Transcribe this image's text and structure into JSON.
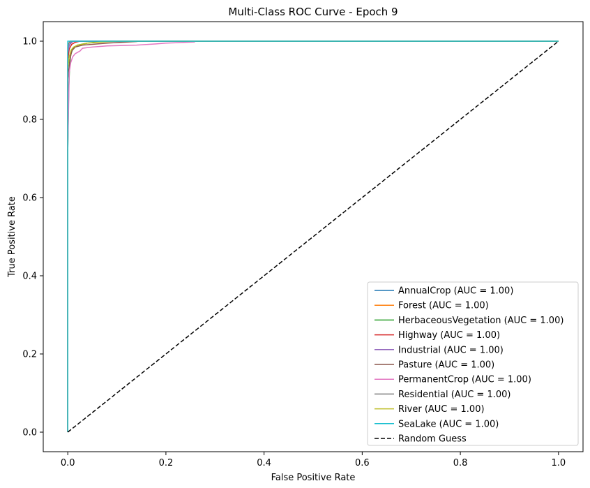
{
  "chart_data": {
    "type": "line",
    "title": "Multi-Class ROC Curve - Epoch 9",
    "xlabel": "False Positive Rate",
    "ylabel": "True Positive Rate",
    "xlim": [
      -0.05,
      1.05
    ],
    "ylim": [
      -0.05,
      1.05
    ],
    "xticks": [
      "0.0",
      "0.2",
      "0.4",
      "0.6",
      "0.8",
      "1.0"
    ],
    "yticks": [
      "0.0",
      "0.2",
      "0.4",
      "0.6",
      "0.8",
      "1.0"
    ],
    "grid": false,
    "legend_position": "lower-right",
    "series": [
      {
        "name": "AnnualCrop (AUC = 1.00)",
        "color": "#1f77b4",
        "points": [
          [
            0,
            0
          ],
          [
            0,
            0.96
          ],
          [
            0.002,
            0.985
          ],
          [
            0.005,
            0.995
          ],
          [
            0.01,
            1.0
          ],
          [
            1,
            1
          ]
        ]
      },
      {
        "name": "Forest (AUC = 1.00)",
        "color": "#ff7f0e",
        "points": [
          [
            0,
            0
          ],
          [
            0,
            0.99
          ],
          [
            0.003,
            0.997
          ],
          [
            0.006,
            1.0
          ],
          [
            1,
            1
          ]
        ]
      },
      {
        "name": "HerbaceousVegetation (AUC = 1.00)",
        "color": "#2ca02c",
        "points": [
          [
            0,
            0
          ],
          [
            0,
            0.72
          ],
          [
            0.002,
            0.88
          ],
          [
            0.004,
            0.94
          ],
          [
            0.006,
            0.965
          ],
          [
            0.01,
            0.98
          ],
          [
            0.02,
            0.99
          ],
          [
            0.04,
            0.995
          ],
          [
            0.06,
            0.998
          ],
          [
            0.08,
            1.0
          ],
          [
            1,
            1
          ]
        ]
      },
      {
        "name": "Highway (AUC = 1.00)",
        "color": "#d62728",
        "points": [
          [
            0,
            0
          ],
          [
            0,
            0.95
          ],
          [
            0.003,
            0.98
          ],
          [
            0.008,
            0.992
          ],
          [
            0.015,
            0.997
          ],
          [
            0.025,
            1.0
          ],
          [
            1,
            1
          ]
        ]
      },
      {
        "name": "Industrial (AUC = 1.00)",
        "color": "#9467bd",
        "points": [
          [
            0,
            0
          ],
          [
            0,
            0.97
          ],
          [
            0.003,
            0.99
          ],
          [
            0.008,
            0.997
          ],
          [
            0.012,
            1.0
          ],
          [
            1,
            1
          ]
        ]
      },
      {
        "name": "Pasture (AUC = 1.00)",
        "color": "#8c564b",
        "points": [
          [
            0,
            0
          ],
          [
            0,
            0.9
          ],
          [
            0.004,
            0.95
          ],
          [
            0.008,
            0.975
          ],
          [
            0.015,
            0.985
          ],
          [
            0.03,
            0.99
          ],
          [
            0.05,
            0.992
          ],
          [
            0.08,
            0.995
          ],
          [
            0.11,
            0.997
          ],
          [
            0.14,
            0.999
          ],
          [
            0.145,
            1.0
          ],
          [
            1,
            1
          ]
        ]
      },
      {
        "name": "PermanentCrop (AUC = 1.00)",
        "color": "#e377c2",
        "points": [
          [
            0,
            0
          ],
          [
            0,
            0.72
          ],
          [
            0.003,
            0.92
          ],
          [
            0.006,
            0.945
          ],
          [
            0.01,
            0.96
          ],
          [
            0.015,
            0.968
          ],
          [
            0.025,
            0.975
          ],
          [
            0.03,
            0.982
          ],
          [
            0.05,
            0.985
          ],
          [
            0.08,
            0.988
          ],
          [
            0.14,
            0.99
          ],
          [
            0.18,
            0.993
          ],
          [
            0.2,
            0.995
          ],
          [
            0.24,
            0.997
          ],
          [
            0.258,
            0.998
          ],
          [
            0.26,
            1.0
          ],
          [
            1,
            1
          ]
        ]
      },
      {
        "name": "Residential (AUC = 1.00)",
        "color": "#7f7f7f",
        "points": [
          [
            0,
            0
          ],
          [
            0,
            0.985
          ],
          [
            0.002,
            0.995
          ],
          [
            0.005,
            1.0
          ],
          [
            1,
            1
          ]
        ]
      },
      {
        "name": "River (AUC = 1.00)",
        "color": "#bcbd22",
        "points": [
          [
            0,
            0
          ],
          [
            0,
            0.93
          ],
          [
            0.003,
            0.96
          ],
          [
            0.007,
            0.978
          ],
          [
            0.012,
            0.985
          ],
          [
            0.02,
            0.99
          ],
          [
            0.04,
            0.995
          ],
          [
            0.07,
            0.998
          ],
          [
            0.1,
            1.0
          ],
          [
            1,
            1
          ]
        ]
      },
      {
        "name": "SeaLake (AUC = 1.00)",
        "color": "#17becf",
        "points": [
          [
            0,
            0
          ],
          [
            0,
            1.0
          ],
          [
            1,
            1
          ]
        ]
      },
      {
        "name": "Random Guess",
        "color": "#000000",
        "dashed": true,
        "points": [
          [
            0,
            0
          ],
          [
            1,
            1
          ]
        ]
      }
    ]
  }
}
